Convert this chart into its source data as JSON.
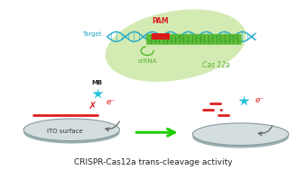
{
  "title": "CRISPR-Cas12a trans-cleavage activity",
  "title_fontsize": 6.5,
  "bg_color": "#ffffff",
  "cas12a_blob_color": "#c8e6a0",
  "cas12a_blob_alpha": 0.8,
  "cas12a_label": "Cas 12a",
  "cas12a_label_color": "#5ab030",
  "cas12a_label_fontsize": 5.5,
  "pam_label": "PAM",
  "pam_label_color": "#dd2020",
  "pam_label_fontsize": 5.5,
  "target_label": "Target",
  "target_label_color": "#20a8c8",
  "target_label_fontsize": 5.0,
  "crRNA_label": "crRNA",
  "crRNA_label_color": "#5ab030",
  "crRNA_label_fontsize": 5.0,
  "ito_label": "ITO surface",
  "ito_label_fontsize": 5.0,
  "mb_label": "MB",
  "mb_label_fontsize": 5.0,
  "star_color": "#20c0d8",
  "cross_color": "#dd2020",
  "e_minus_color": "#dd2020",
  "arrow_color": "#22cc00",
  "dna_helix_color": "#20a8c8",
  "crRNA_color": "#50b828",
  "pam_block_color": "#dd2020",
  "red_line_color": "#dd2020",
  "red_dash_color": "#dd2020",
  "ito_face_color": "#d4dede",
  "ito_edge_color": "#8899a0",
  "curved_arrow_color": "#666666"
}
